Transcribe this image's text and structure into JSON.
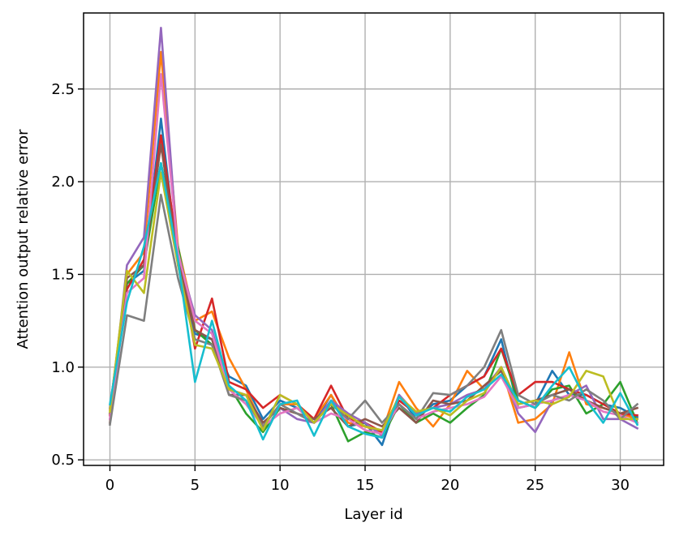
{
  "chart_data": {
    "type": "line",
    "title": "",
    "xlabel": "Layer id",
    "ylabel": "Attention output relative error",
    "xlim": [
      -1.55,
      32.55
    ],
    "ylim": [
      0.47,
      2.91
    ],
    "x_ticks": [
      0,
      5,
      10,
      15,
      20,
      25,
      30
    ],
    "x_tick_labels": [
      "0",
      "5",
      "10",
      "15",
      "20",
      "25",
      "30"
    ],
    "y_ticks": [
      0.5,
      1.0,
      1.5,
      2.0,
      2.5
    ],
    "y_tick_labels": [
      "0.5",
      "1.0",
      "1.5",
      "2.0",
      "2.5"
    ],
    "grid": true,
    "legend": "none",
    "x": [
      0,
      1,
      2,
      3,
      4,
      5,
      6,
      7,
      8,
      9,
      10,
      11,
      12,
      13,
      14,
      15,
      16,
      17,
      18,
      19,
      20,
      21,
      22,
      23,
      24,
      25,
      26,
      27,
      28,
      29,
      30,
      31
    ],
    "series": [
      {
        "color": "#1f77b4",
        "values": [
          0.78,
          1.45,
          1.52,
          2.34,
          1.55,
          1.18,
          1.15,
          0.95,
          0.9,
          0.72,
          0.82,
          0.78,
          0.7,
          0.85,
          0.68,
          0.7,
          0.58,
          0.85,
          0.72,
          0.8,
          0.82,
          0.9,
          0.95,
          1.15,
          0.78,
          0.8,
          0.98,
          0.85,
          0.85,
          0.8,
          0.78,
          0.73
        ]
      },
      {
        "color": "#ff7f0e",
        "values": [
          0.77,
          1.5,
          1.62,
          2.7,
          1.65,
          1.25,
          1.3,
          1.05,
          0.88,
          0.68,
          0.8,
          0.8,
          0.72,
          0.85,
          0.7,
          0.68,
          0.65,
          0.92,
          0.78,
          0.68,
          0.8,
          0.98,
          0.88,
          1.0,
          0.7,
          0.72,
          0.8,
          1.08,
          0.8,
          0.78,
          0.75,
          0.72
        ]
      },
      {
        "color": "#2ca02c",
        "values": [
          0.75,
          1.45,
          1.55,
          2.1,
          1.65,
          1.2,
          1.12,
          0.9,
          0.75,
          0.65,
          0.78,
          0.75,
          0.7,
          0.8,
          0.6,
          0.65,
          0.62,
          0.8,
          0.7,
          0.75,
          0.7,
          0.78,
          0.85,
          1.1,
          0.82,
          0.78,
          0.88,
          0.9,
          0.75,
          0.8,
          0.92,
          0.7
        ]
      },
      {
        "color": "#d62728",
        "values": [
          0.74,
          1.42,
          1.58,
          2.25,
          1.62,
          1.1,
          1.37,
          0.92,
          0.88,
          0.78,
          0.85,
          0.8,
          0.72,
          0.9,
          0.72,
          0.7,
          0.65,
          0.82,
          0.75,
          0.78,
          0.85,
          0.9,
          0.95,
          1.1,
          0.85,
          0.92,
          0.92,
          0.88,
          0.85,
          0.8,
          0.75,
          0.74
        ]
      },
      {
        "color": "#9467bd",
        "values": [
          0.72,
          1.55,
          1.7,
          2.83,
          1.6,
          1.28,
          1.2,
          0.88,
          0.85,
          0.7,
          0.78,
          0.72,
          0.7,
          0.82,
          0.75,
          0.7,
          0.63,
          0.85,
          0.75,
          0.78,
          0.8,
          0.85,
          0.88,
          1.0,
          0.75,
          0.65,
          0.82,
          0.85,
          0.9,
          0.72,
          0.72,
          0.67
        ]
      },
      {
        "color": "#8c564b",
        "values": [
          0.7,
          1.48,
          1.55,
          2.2,
          1.58,
          1.2,
          1.15,
          0.85,
          0.85,
          0.7,
          0.78,
          0.75,
          0.72,
          0.78,
          0.68,
          0.72,
          0.68,
          0.78,
          0.7,
          0.82,
          0.8,
          0.82,
          0.9,
          0.98,
          0.8,
          0.82,
          0.85,
          0.88,
          0.82,
          0.78,
          0.75,
          0.78
        ]
      },
      {
        "color": "#e377c2",
        "values": [
          0.72,
          1.4,
          1.48,
          2.58,
          1.62,
          1.25,
          1.18,
          0.88,
          0.8,
          0.68,
          0.75,
          0.78,
          0.7,
          0.75,
          0.72,
          0.66,
          0.64,
          0.8,
          0.72,
          0.76,
          0.78,
          0.8,
          0.84,
          0.95,
          0.78,
          0.8,
          0.82,
          0.85,
          0.82,
          0.76,
          0.74,
          0.7
        ]
      },
      {
        "color": "#7f7f7f",
        "values": [
          0.69,
          1.28,
          1.25,
          1.93,
          1.48,
          1.15,
          1.12,
          0.85,
          0.82,
          0.68,
          0.8,
          0.75,
          0.7,
          0.8,
          0.72,
          0.82,
          0.7,
          0.8,
          0.72,
          0.86,
          0.85,
          0.9,
          1.0,
          1.2,
          0.85,
          0.8,
          0.85,
          0.82,
          0.88,
          0.82,
          0.72,
          0.8
        ]
      },
      {
        "color": "#bcbd22",
        "values": [
          0.76,
          1.52,
          1.4,
          2.05,
          1.55,
          1.12,
          1.1,
          0.88,
          0.85,
          0.66,
          0.85,
          0.8,
          0.7,
          0.8,
          0.74,
          0.68,
          0.66,
          0.84,
          0.76,
          0.78,
          0.74,
          0.82,
          0.86,
          1.0,
          0.8,
          0.82,
          0.8,
          0.84,
          0.98,
          0.95,
          0.72,
          0.72
        ]
      },
      {
        "color": "#17becf",
        "values": [
          0.8,
          1.35,
          1.65,
          2.1,
          1.58,
          0.92,
          1.25,
          0.9,
          0.82,
          0.61,
          0.8,
          0.82,
          0.63,
          0.82,
          0.68,
          0.64,
          0.62,
          0.84,
          0.74,
          0.78,
          0.76,
          0.84,
          0.88,
          0.96,
          0.82,
          0.78,
          0.9,
          1.0,
          0.82,
          0.7,
          0.86,
          0.69
        ]
      }
    ]
  }
}
